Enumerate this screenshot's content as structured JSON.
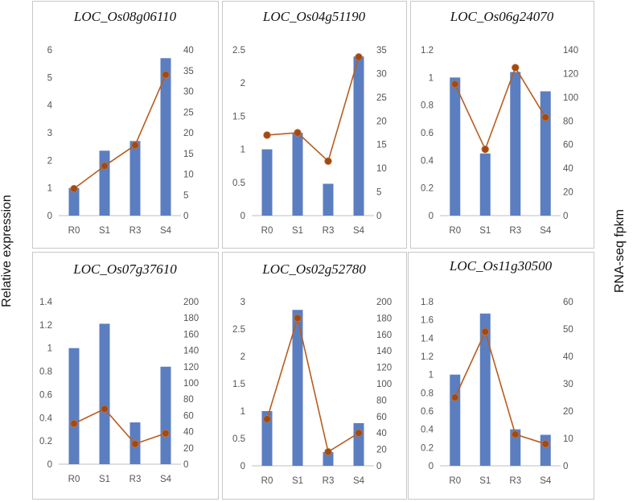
{
  "figure": {
    "left_axis_label": "Relative expression",
    "right_axis_label": "RNA-seq fpkm",
    "bar_color": "#5b7ec0",
    "line_color": "#b85c1f",
    "marker_color": "#a04a14",
    "panel_border": "#c8c8c8"
  },
  "chart_data": [
    {
      "type": "bar",
      "title": "LOC_Os08g06110",
      "categories": [
        "R0",
        "S1",
        "R3",
        "S4"
      ],
      "series": [
        {
          "name": "Relative expression",
          "axis": "left",
          "values": [
            1.0,
            2.35,
            2.7,
            5.7
          ]
        },
        {
          "name": "RNA-seq fpkm",
          "axis": "right",
          "type": "line",
          "values": [
            6.5,
            12,
            17,
            34
          ]
        }
      ],
      "ylim_left": [
        0,
        6
      ],
      "yticks_left": [
        0,
        1,
        2,
        3,
        4,
        5,
        6
      ],
      "ylim_right": [
        0,
        40
      ],
      "yticks_right": [
        0,
        5,
        10,
        15,
        20,
        25,
        30,
        35,
        40
      ]
    },
    {
      "type": "bar",
      "title": "LOC_Os04g51190",
      "categories": [
        "R0",
        "S1",
        "R3",
        "S4"
      ],
      "series": [
        {
          "name": "Relative expression",
          "axis": "left",
          "values": [
            1.0,
            1.25,
            0.48,
            2.4
          ]
        },
        {
          "name": "RNA-seq fpkm",
          "axis": "right",
          "type": "line",
          "values": [
            17,
            17.5,
            11.5,
            33.5
          ]
        }
      ],
      "ylim_left": [
        0,
        2.5
      ],
      "yticks_left": [
        0,
        0.5,
        1,
        1.5,
        2,
        2.5
      ],
      "ylim_right": [
        0,
        35
      ],
      "yticks_right": [
        0,
        5,
        10,
        15,
        20,
        25,
        30,
        35
      ]
    },
    {
      "type": "bar",
      "title": "LOC_Os06g24070",
      "categories": [
        "R0",
        "S1",
        "R3",
        "S4"
      ],
      "series": [
        {
          "name": "Relative expression",
          "axis": "left",
          "values": [
            1.0,
            0.45,
            1.04,
            0.9
          ]
        },
        {
          "name": "RNA-seq fpkm",
          "axis": "right",
          "type": "line",
          "values": [
            111,
            56,
            125,
            83
          ]
        }
      ],
      "ylim_left": [
        0,
        1.2
      ],
      "yticks_left": [
        0,
        0.2,
        0.4,
        0.6,
        0.8,
        1,
        1.2
      ],
      "ylim_right": [
        0,
        140
      ],
      "yticks_right": [
        0,
        20,
        40,
        60,
        80,
        100,
        120,
        140
      ]
    },
    {
      "type": "bar",
      "title": "LOC_Os07g37610",
      "categories": [
        "R0",
        "S1",
        "R3",
        "S4"
      ],
      "series": [
        {
          "name": "Relative expression",
          "axis": "left",
          "values": [
            1.0,
            1.21,
            0.36,
            0.84
          ]
        },
        {
          "name": "RNA-seq fpkm",
          "axis": "right",
          "type": "line",
          "values": [
            50,
            68,
            25,
            38
          ]
        }
      ],
      "ylim_left": [
        0,
        1.4
      ],
      "yticks_left": [
        0,
        0.2,
        0.4,
        0.6,
        0.8,
        1,
        1.2,
        1.4
      ],
      "ylim_right": [
        0,
        200
      ],
      "yticks_right": [
        0,
        20,
        40,
        60,
        80,
        100,
        120,
        140,
        160,
        180,
        200
      ]
    },
    {
      "type": "bar",
      "title": "LOC_Os02g52780",
      "categories": [
        "R0",
        "S1",
        "R3",
        "S4"
      ],
      "series": [
        {
          "name": "Relative expression",
          "axis": "left",
          "values": [
            1.0,
            2.85,
            0.25,
            0.78
          ]
        },
        {
          "name": "RNA-seq fpkm",
          "axis": "right",
          "type": "line",
          "values": [
            57,
            180,
            17,
            40
          ]
        }
      ],
      "ylim_left": [
        0,
        3
      ],
      "yticks_left": [
        0,
        0.5,
        1,
        1.5,
        2,
        2.5,
        3
      ],
      "ylim_right": [
        0,
        200
      ],
      "yticks_right": [
        0,
        20,
        40,
        60,
        80,
        100,
        120,
        140,
        160,
        180,
        200
      ]
    },
    {
      "type": "bar",
      "title": "LOC_Os11g30500",
      "categories": [
        "R0",
        "S1",
        "R3",
        "S4"
      ],
      "series": [
        {
          "name": "Relative expression",
          "axis": "left",
          "values": [
            1.0,
            1.67,
            0.4,
            0.34
          ]
        },
        {
          "name": "RNA-seq fpkm",
          "axis": "right",
          "type": "line",
          "values": [
            25,
            49,
            11.5,
            8
          ]
        }
      ],
      "ylim_left": [
        0,
        1.8
      ],
      "yticks_left": [
        0,
        0.2,
        0.4,
        0.6,
        0.8,
        1,
        1.2,
        1.4,
        1.6,
        1.8
      ],
      "ylim_right": [
        0,
        60
      ],
      "yticks_right": [
        0,
        10,
        20,
        30,
        40,
        50,
        60
      ]
    }
  ]
}
